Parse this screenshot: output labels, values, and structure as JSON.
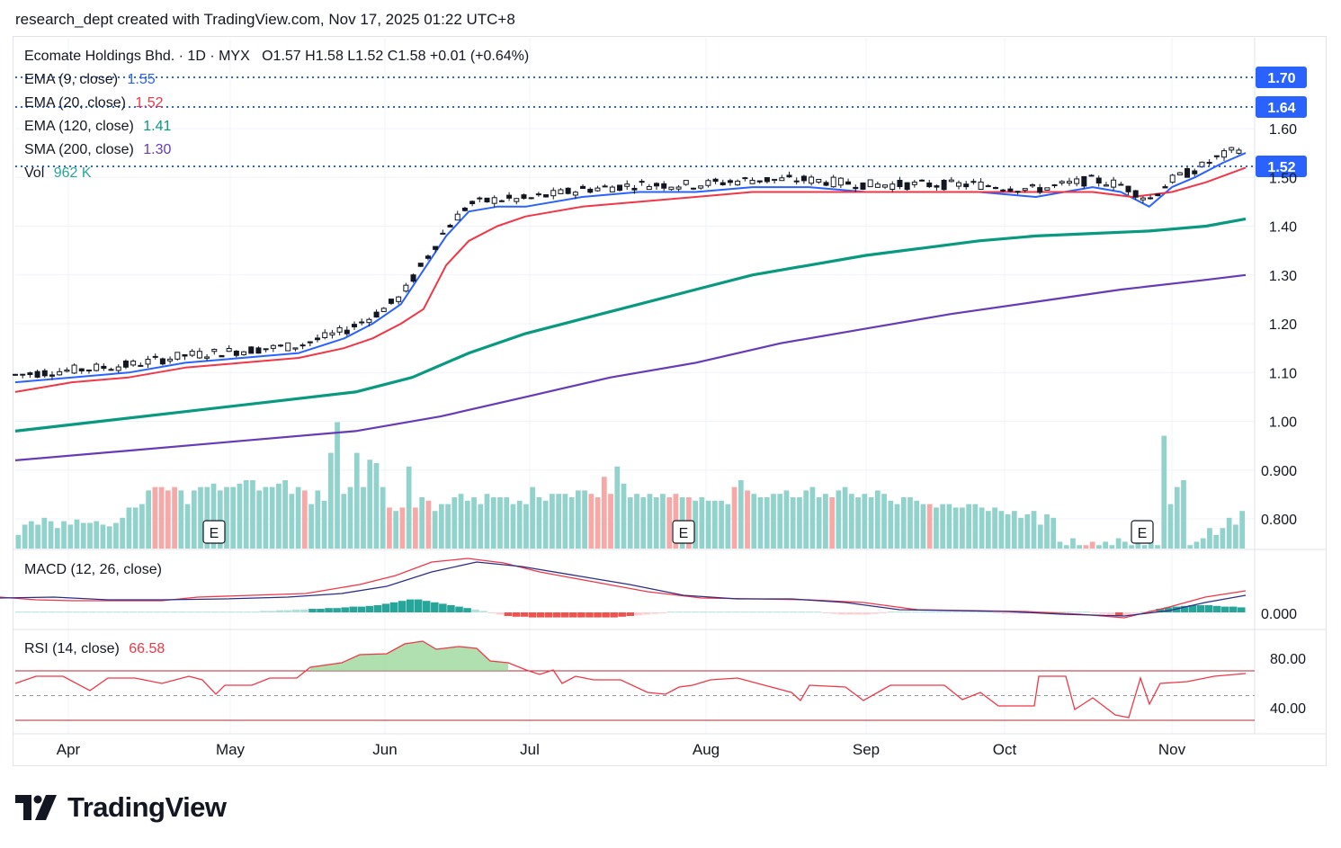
{
  "header": {
    "text": "research_dept created with TradingView.com, Nov 17, 2025 01:22 UTC+8"
  },
  "legend": {
    "symbol": "Ecomate Holdings Bhd. · 1D · MYX",
    "ohlc": "O1.57  H1.58  L1.52  C1.58  +0.01 (+0.64%)",
    "ema9": {
      "label": "EMA (9, close)",
      "value": "1.55",
      "color": "#2962ff"
    },
    "ema20": {
      "label": "EMA (20, close)",
      "value": "1.52",
      "color": "#f23645"
    },
    "ema120": {
      "label": "EMA (120, close)",
      "value": "1.41",
      "color": "#089981"
    },
    "sma200": {
      "label": "SMA (200, close)",
      "value": "1.30",
      "color": "#673ab7"
    },
    "vol": {
      "label": "Vol",
      "value": "962 K",
      "color": "#26a69a"
    },
    "macd": {
      "label": "MACD (12, 26, close)"
    },
    "rsi": {
      "label": "RSI (14, close)",
      "value": "66.58",
      "color": "#f23645"
    }
  },
  "price_badges": [
    {
      "value": "1.70"
    },
    {
      "value": "1.64"
    },
    {
      "value": "1.52"
    }
  ],
  "chart_data": {
    "type": "line",
    "title": "Ecomate Holdings Bhd. · 1D · MYX",
    "x_axis": {
      "labels": [
        "Apr",
        "May",
        "Jun",
        "Jul",
        "Aug",
        "Sep",
        "Oct",
        "Nov"
      ]
    },
    "price_axis": {
      "ticks": [
        "1.60",
        "1.50",
        "1.40",
        "1.30",
        "1.20",
        "1.10",
        "1.00",
        "0.900",
        "0.800"
      ],
      "ylim": [
        0.74,
        1.64
      ]
    },
    "horizontal_levels": [
      1.7,
      1.64,
      1.52
    ],
    "series": [
      {
        "name": "EMA (9, close)",
        "color": "#2962ff",
        "points": [
          [
            0,
            1.08
          ],
          [
            10,
            1.09
          ],
          [
            20,
            1.1
          ],
          [
            30,
            1.12
          ],
          [
            40,
            1.13
          ],
          [
            50,
            1.14
          ],
          [
            58,
            1.17
          ],
          [
            63,
            1.2
          ],
          [
            68,
            1.24
          ],
          [
            72,
            1.31
          ],
          [
            76,
            1.38
          ],
          [
            80,
            1.43
          ],
          [
            85,
            1.44
          ],
          [
            90,
            1.44
          ],
          [
            100,
            1.46
          ],
          [
            110,
            1.47
          ],
          [
            120,
            1.47
          ],
          [
            130,
            1.48
          ],
          [
            140,
            1.48
          ],
          [
            150,
            1.47
          ],
          [
            160,
            1.47
          ],
          [
            170,
            1.47
          ],
          [
            180,
            1.46
          ],
          [
            185,
            1.47
          ],
          [
            190,
            1.48
          ],
          [
            195,
            1.47
          ],
          [
            200,
            1.44
          ],
          [
            204,
            1.48
          ],
          [
            208,
            1.5
          ],
          [
            213,
            1.53
          ],
          [
            217,
            1.55
          ]
        ]
      },
      {
        "name": "EMA (20, close)",
        "color": "#f23645",
        "points": [
          [
            0,
            1.06
          ],
          [
            10,
            1.08
          ],
          [
            20,
            1.09
          ],
          [
            30,
            1.11
          ],
          [
            40,
            1.12
          ],
          [
            50,
            1.13
          ],
          [
            58,
            1.15
          ],
          [
            63,
            1.17
          ],
          [
            68,
            1.2
          ],
          [
            72,
            1.23
          ],
          [
            76,
            1.32
          ],
          [
            80,
            1.37
          ],
          [
            85,
            1.4
          ],
          [
            90,
            1.42
          ],
          [
            100,
            1.44
          ],
          [
            110,
            1.45
          ],
          [
            120,
            1.46
          ],
          [
            130,
            1.47
          ],
          [
            140,
            1.47
          ],
          [
            150,
            1.47
          ],
          [
            160,
            1.47
          ],
          [
            170,
            1.47
          ],
          [
            180,
            1.47
          ],
          [
            190,
            1.47
          ],
          [
            197,
            1.46
          ],
          [
            204,
            1.47
          ],
          [
            210,
            1.49
          ],
          [
            217,
            1.52
          ]
        ]
      },
      {
        "name": "EMA (120, close)",
        "color": "#089981",
        "points": [
          [
            0,
            0.98
          ],
          [
            15,
            1.0
          ],
          [
            30,
            1.02
          ],
          [
            45,
            1.04
          ],
          [
            60,
            1.06
          ],
          [
            70,
            1.09
          ],
          [
            80,
            1.14
          ],
          [
            90,
            1.18
          ],
          [
            100,
            1.21
          ],
          [
            110,
            1.24
          ],
          [
            120,
            1.27
          ],
          [
            130,
            1.3
          ],
          [
            140,
            1.32
          ],
          [
            150,
            1.34
          ],
          [
            160,
            1.355
          ],
          [
            170,
            1.37
          ],
          [
            180,
            1.38
          ],
          [
            190,
            1.385
          ],
          [
            200,
            1.39
          ],
          [
            210,
            1.4
          ],
          [
            217,
            1.415
          ]
        ]
      },
      {
        "name": "SMA (200, close)",
        "color": "#673ab7",
        "points": [
          [
            0,
            0.92
          ],
          [
            20,
            0.94
          ],
          [
            40,
            0.96
          ],
          [
            60,
            0.98
          ],
          [
            75,
            1.01
          ],
          [
            90,
            1.05
          ],
          [
            105,
            1.09
          ],
          [
            120,
            1.12
          ],
          [
            135,
            1.16
          ],
          [
            150,
            1.19
          ],
          [
            165,
            1.22
          ],
          [
            180,
            1.245
          ],
          [
            195,
            1.27
          ],
          [
            210,
            1.29
          ],
          [
            217,
            1.3
          ]
        ]
      }
    ],
    "volume_bars": [
      8,
      14,
      16,
      14,
      18,
      16,
      12,
      16,
      14,
      17,
      15,
      15,
      16,
      14,
      13,
      15,
      18,
      24,
      24,
      26,
      34,
      36,
      36,
      34,
      36,
      34,
      26,
      34,
      36,
      36,
      38,
      34,
      36,
      36,
      38,
      40,
      40,
      34,
      36,
      36,
      38,
      40,
      32,
      36,
      34,
      26,
      34,
      28,
      56,
      74,
      32,
      36,
      56,
      36,
      52,
      50,
      36,
      24,
      22,
      24,
      48,
      24,
      30,
      28,
      22,
      26,
      26,
      30,
      32,
      28,
      30,
      26,
      32,
      30,
      30,
      30,
      26,
      28,
      26,
      36,
      30,
      28,
      32,
      32,
      32,
      30,
      34,
      34,
      32,
      30,
      42,
      32,
      48,
      38,
      30,
      32,
      30,
      32,
      30,
      32,
      30,
      32,
      30,
      30,
      28,
      30,
      28,
      28,
      28,
      26,
      36,
      40,
      34,
      32,
      30,
      30,
      32,
      32,
      34,
      30,
      30,
      34,
      36,
      30,
      32,
      30,
      34,
      36,
      32,
      30,
      32,
      30,
      34,
      32,
      28,
      26,
      30,
      30,
      28,
      26,
      26,
      24,
      26,
      26,
      24,
      24,
      26,
      26,
      24,
      22,
      24,
      22,
      20,
      22,
      18,
      20,
      22,
      14,
      20,
      18,
      4,
      2,
      6,
      2,
      2,
      4,
      2,
      4,
      2,
      6,
      4,
      2,
      6,
      2,
      4,
      2,
      66,
      26,
      36,
      40,
      2,
      4,
      6,
      12,
      8,
      12,
      18,
      14,
      22
    ],
    "macd": {
      "name": "MACD (12, 26, close)",
      "ticks": [
        "0.000"
      ]
    },
    "rsi": {
      "name": "RSI (14, close)",
      "value": 66.58,
      "ticks": [
        "80.00",
        "40.00"
      ],
      "bands": [
        70,
        30
      ]
    }
  },
  "earnings_markers": [
    "E",
    "E",
    "E"
  ],
  "logo": {
    "text": "TradingView"
  }
}
